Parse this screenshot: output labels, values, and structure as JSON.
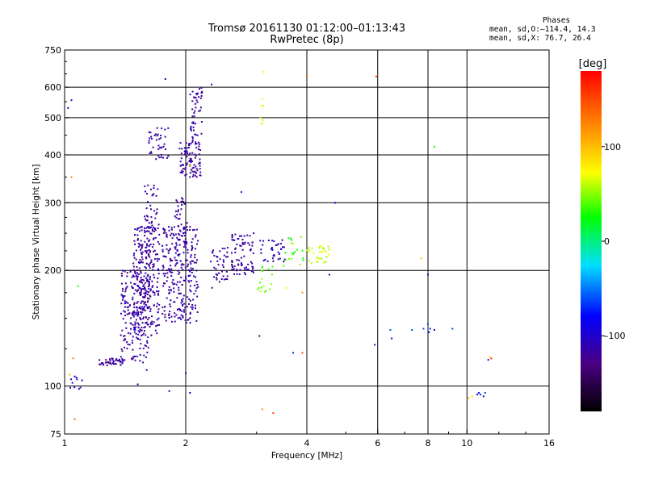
{
  "header": {
    "title_line1": "Tromsø 20161130 01:12:00–01:13:43",
    "title_line2": "RwPretec (8p)"
  },
  "phases_box": {
    "heading": "Phases",
    "line_o": "mean, sd,O:–114.4, 14.3",
    "line_x": "mean, sd,X:  76.7, 26.4"
  },
  "colorbar": {
    "title": "[deg]",
    "ticks": [
      {
        "value": 100,
        "label": "100"
      },
      {
        "value": 0,
        "label": "0"
      },
      {
        "value": -100,
        "label": "–100"
      }
    ],
    "range": [
      -180,
      180
    ],
    "colors": [
      "#000000",
      "#4b0082",
      "#0000ff",
      "#00e0ff",
      "#00ff00",
      "#ffff00",
      "#ff8000",
      "#ff0000"
    ]
  },
  "chart_data": {
    "type": "scatter",
    "title": "Tromsø 20161130 01:12:00–01:13:43",
    "subtitle": "RwPretec (8p)",
    "xlabel": "Frequency [MHz]",
    "ylabel": "Stationary phase Virtual Height [km]",
    "x_scale": "log",
    "y_scale": "log",
    "xlim": [
      1,
      16
    ],
    "ylim": [
      75,
      750
    ],
    "x_ticks": [
      {
        "value": 1,
        "label": "1"
      },
      {
        "value": 2,
        "label": "2"
      },
      {
        "value": 4,
        "label": "4"
      },
      {
        "value": 6,
        "label": "6"
      },
      {
        "value": 8,
        "label": "8"
      },
      {
        "value": 10,
        "label": "10"
      },
      {
        "value": 16,
        "label": "16"
      }
    ],
    "y_ticks": [
      {
        "value": 75,
        "label": "75"
      },
      {
        "value": 100,
        "label": "100"
      },
      {
        "value": 200,
        "label": "200"
      },
      {
        "value": 300,
        "label": "300"
      },
      {
        "value": 400,
        "label": "400"
      },
      {
        "value": 500,
        "label": "500"
      },
      {
        "value": 600,
        "label": "600"
      },
      {
        "value": 750,
        "label": "750"
      }
    ],
    "grid_x": [
      2,
      4,
      6,
      8,
      10
    ],
    "grid_y": [
      100,
      200,
      300,
      400,
      500,
      600
    ],
    "color_scale": "phase in degrees",
    "clusters": [
      {
        "f": [
          1.22,
          1.4
        ],
        "h": [
          113,
          118
        ],
        "n": 45,
        "phase": [
          -130,
          -110
        ]
      },
      {
        "f": [
          1.38,
          1.62
        ],
        "h": [
          115,
          200
        ],
        "n": 180,
        "phase": [
          -130,
          -100
        ]
      },
      {
        "f": [
          1.48,
          1.72
        ],
        "h": [
          135,
          260
        ],
        "n": 260,
        "phase": [
          -130,
          -100
        ]
      },
      {
        "f": [
          1.58,
          1.72
        ],
        "h": [
          210,
          340
        ],
        "n": 60,
        "phase": [
          -125,
          -105
        ]
      },
      {
        "f": [
          1.62,
          1.82
        ],
        "h": [
          390,
          470
        ],
        "n": 40,
        "phase": [
          -125,
          -105
        ]
      },
      {
        "f": [
          1.75,
          2.15
        ],
        "h": [
          145,
          260
        ],
        "n": 260,
        "phase": [
          -130,
          -100
        ]
      },
      {
        "f": [
          1.88,
          2.02
        ],
        "h": [
          230,
          310
        ],
        "n": 45,
        "phase": [
          -125,
          -105
        ]
      },
      {
        "f": [
          1.93,
          2.18
        ],
        "h": [
          350,
          430
        ],
        "n": 90,
        "phase": [
          -125,
          -105
        ]
      },
      {
        "f": [
          2.05,
          2.2
        ],
        "h": [
          430,
          600
        ],
        "n": 50,
        "phase": [
          -125,
          -105
        ]
      },
      {
        "f": [
          2.3,
          2.55
        ],
        "h": [
          180,
          230
        ],
        "n": 40,
        "phase": [
          -125,
          -105
        ]
      },
      {
        "f": [
          2.6,
          2.95
        ],
        "h": [
          195,
          250
        ],
        "n": 80,
        "phase": [
          -125,
          -105
        ]
      },
      {
        "f": [
          3.05,
          3.55
        ],
        "h": [
          210,
          240
        ],
        "n": 35,
        "phase": [
          -120,
          -100
        ]
      },
      {
        "f": [
          3.0,
          3.3
        ],
        "h": [
          175,
          205
        ],
        "n": 18,
        "phase": [
          30,
          70
        ]
      },
      {
        "f": [
          3.5,
          3.95
        ],
        "h": [
          205,
          245
        ],
        "n": 20,
        "phase": [
          10,
          60
        ]
      },
      {
        "f": [
          4.0,
          4.55
        ],
        "h": [
          205,
          235
        ],
        "n": 30,
        "phase": [
          50,
          80
        ]
      },
      {
        "f": [
          3.05,
          3.12
        ],
        "h": [
          480,
          560
        ],
        "n": 8,
        "phase": [
          60,
          90
        ]
      },
      {
        "f": [
          1.03,
          1.12
        ],
        "h": [
          98,
          106
        ],
        "n": 10,
        "phase": [
          -110,
          -90
        ]
      }
    ],
    "points": [
      {
        "x": 1.02,
        "y": 530,
        "phase": -110
      },
      {
        "x": 1.04,
        "y": 555,
        "phase": -110
      },
      {
        "x": 1.04,
        "y": 350,
        "phase": 130
      },
      {
        "x": 1.08,
        "y": 182,
        "phase": 20
      },
      {
        "x": 1.05,
        "y": 118,
        "phase": 130
      },
      {
        "x": 1.03,
        "y": 107,
        "phase": 110
      },
      {
        "x": 1.06,
        "y": 82,
        "phase": 140
      },
      {
        "x": 1.52,
        "y": 101,
        "phase": -110
      },
      {
        "x": 1.6,
        "y": 110,
        "phase": -100
      },
      {
        "x": 1.82,
        "y": 97,
        "phase": -100
      },
      {
        "x": 2.05,
        "y": 96,
        "phase": -100
      },
      {
        "x": 2.0,
        "y": 108,
        "phase": -100
      },
      {
        "x": 1.78,
        "y": 630,
        "phase": -110
      },
      {
        "x": 2.32,
        "y": 610,
        "phase": -120
      },
      {
        "x": 2.05,
        "y": 375,
        "phase": 100
      },
      {
        "x": 3.12,
        "y": 658,
        "phase": 80
      },
      {
        "x": 2.75,
        "y": 320,
        "phase": -110
      },
      {
        "x": 2.95,
        "y": 250,
        "phase": -110
      },
      {
        "x": 3.55,
        "y": 180,
        "phase": 80
      },
      {
        "x": 3.9,
        "y": 175,
        "phase": 120
      },
      {
        "x": 4.0,
        "y": 640,
        "phase": 150
      },
      {
        "x": 5.95,
        "y": 640,
        "phase": 160
      },
      {
        "x": 3.05,
        "y": 135,
        "phase": -150
      },
      {
        "x": 3.1,
        "y": 87,
        "phase": 120
      },
      {
        "x": 3.3,
        "y": 85,
        "phase": 160
      },
      {
        "x": 3.7,
        "y": 122,
        "phase": -70
      },
      {
        "x": 3.9,
        "y": 122,
        "phase": 150
      },
      {
        "x": 4.55,
        "y": 195,
        "phase": -100
      },
      {
        "x": 4.7,
        "y": 300,
        "phase": -90
      },
      {
        "x": 5.9,
        "y": 128,
        "phase": -110
      },
      {
        "x": 6.5,
        "y": 133,
        "phase": -100
      },
      {
        "x": 6.45,
        "y": 140,
        "phase": -60
      },
      {
        "x": 7.3,
        "y": 140,
        "phase": -60
      },
      {
        "x": 7.8,
        "y": 141,
        "phase": -60
      },
      {
        "x": 8.0,
        "y": 145,
        "phase": -60
      },
      {
        "x": 8.05,
        "y": 138,
        "phase": -80
      },
      {
        "x": 8.3,
        "y": 140,
        "phase": -100
      },
      {
        "x": 8.1,
        "y": 141,
        "phase": -70
      },
      {
        "x": 9.2,
        "y": 141,
        "phase": -60
      },
      {
        "x": 7.7,
        "y": 215,
        "phase": 100
      },
      {
        "x": 8.0,
        "y": 195,
        "phase": -100
      },
      {
        "x": 8.3,
        "y": 420,
        "phase": 30
      },
      {
        "x": 11.5,
        "y": 118,
        "phase": 160
      },
      {
        "x": 11.3,
        "y": 117,
        "phase": -90
      },
      {
        "x": 11.4,
        "y": 119,
        "phase": 100
      },
      {
        "x": 10.1,
        "y": 93,
        "phase": 110
      },
      {
        "x": 10.3,
        "y": 94,
        "phase": 90
      },
      {
        "x": 10.6,
        "y": 95,
        "phase": -100
      },
      {
        "x": 10.8,
        "y": 95,
        "phase": -70
      },
      {
        "x": 11.0,
        "y": 94,
        "phase": -110
      },
      {
        "x": 10.7,
        "y": 96,
        "phase": -90
      },
      {
        "x": 11.1,
        "y": 96,
        "phase": -60
      }
    ]
  }
}
